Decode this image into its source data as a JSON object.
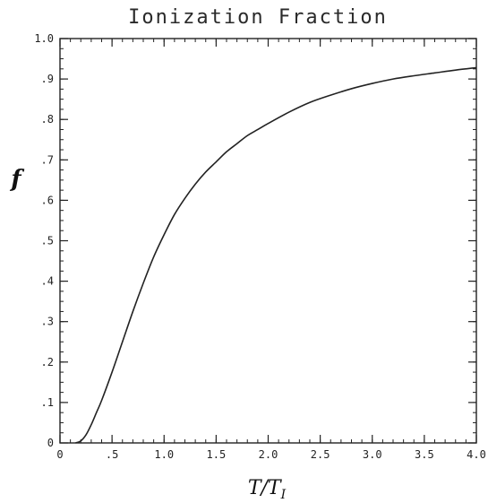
{
  "chart_data": {
    "type": "line",
    "title": "Ionization Fraction",
    "xlabel": "T/T",
    "xlabel_subscript": "I",
    "ylabel": "f",
    "xlim": [
      0,
      4.0
    ],
    "ylim": [
      0,
      1.0
    ],
    "x_ticks": [
      0,
      0.5,
      1.0,
      1.5,
      2.0,
      2.5,
      3.0,
      3.5,
      4.0
    ],
    "x_tick_labels": [
      "0",
      ".5",
      "1.0",
      "1.5",
      "2.0",
      "2.5",
      "3.0",
      "3.5",
      "4.0"
    ],
    "y_ticks": [
      0,
      0.1,
      0.2,
      0.3,
      0.4,
      0.5,
      0.6,
      0.7,
      0.8,
      0.9,
      1.0
    ],
    "y_tick_labels": [
      "0",
      ".1",
      ".2",
      ".3",
      ".4",
      ".5",
      ".6",
      ".7",
      ".8",
      ".9",
      "1.0"
    ],
    "grid": false,
    "series": [
      {
        "color": "#222222",
        "x": [
          0.15,
          0.2,
          0.25,
          0.3,
          0.35,
          0.4,
          0.5,
          0.6,
          0.7,
          0.8,
          0.9,
          1.0,
          1.1,
          1.2,
          1.3,
          1.4,
          1.5,
          1.6,
          1.7,
          1.8,
          1.9,
          2.0,
          2.2,
          2.4,
          2.6,
          2.8,
          3.0,
          3.2,
          3.4,
          3.6,
          3.8,
          4.0
        ],
        "y": [
          0.0,
          0.005,
          0.02,
          0.045,
          0.075,
          0.105,
          0.175,
          0.25,
          0.325,
          0.395,
          0.46,
          0.515,
          0.565,
          0.605,
          0.64,
          0.67,
          0.695,
          0.72,
          0.74,
          0.76,
          0.775,
          0.79,
          0.818,
          0.842,
          0.86,
          0.876,
          0.889,
          0.9,
          0.908,
          0.915,
          0.922,
          0.928
        ]
      }
    ]
  }
}
